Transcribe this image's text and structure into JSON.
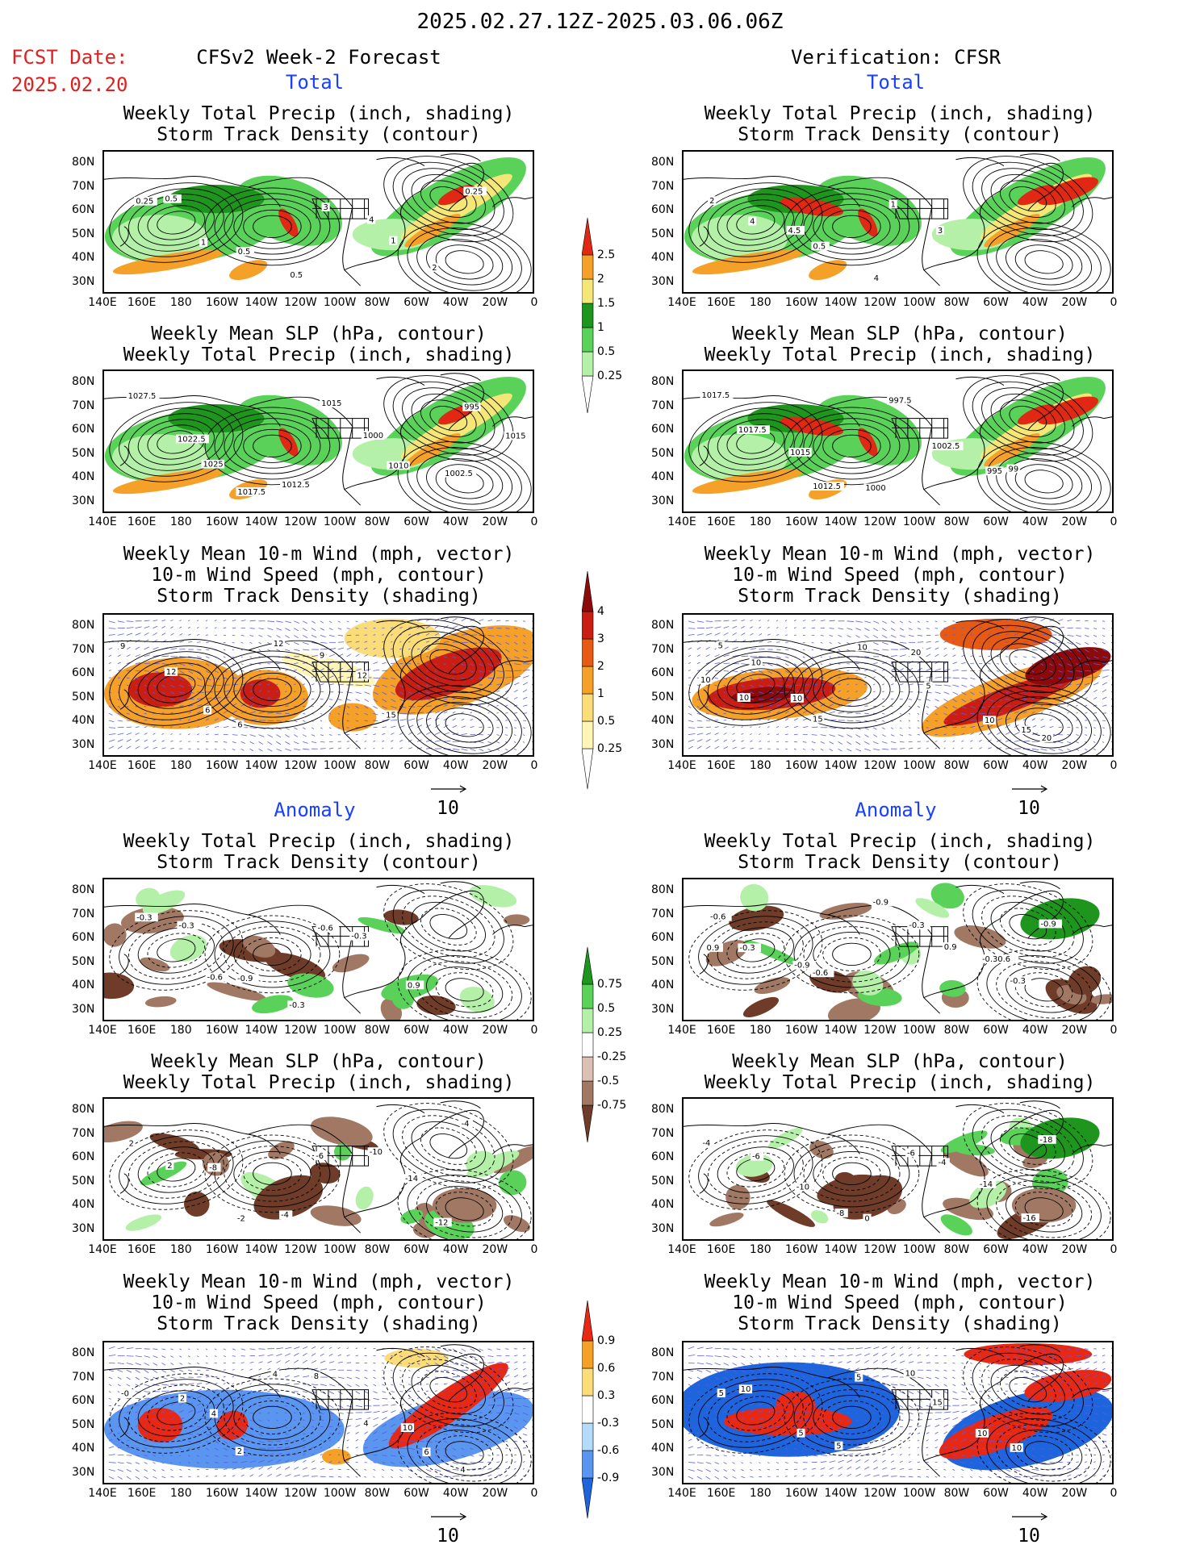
{
  "header": {
    "date_range": "2025.02.27.12Z-2025.03.06.06Z",
    "fcst_label": "FCST Date:",
    "fcst_date": "2025.02.20",
    "left_title": "CFSv2 Week-2 Forecast",
    "right_title": "Verification: CFSR"
  },
  "sections": {
    "total": "Total",
    "anomaly": "Anomaly"
  },
  "panel_titles": {
    "precip_storm": [
      "Weekly Total Precip (inch, shading)",
      "Storm Track Density (contour)"
    ],
    "slp_precip": [
      "Weekly Mean SLP (hPa, contour)",
      "Weekly Total Precip (inch, shading)"
    ],
    "wind_storm": [
      "Weekly Mean 10-m Wind (mph, vector)",
      "10-m Wind Speed (mph, contour)",
      "Storm Track Density (shading)"
    ]
  },
  "axes": {
    "lat_ticks": [
      "80N",
      "70N",
      "60N",
      "50N",
      "40N",
      "30N"
    ],
    "lon_ticks": [
      "140E",
      "160E",
      "180",
      "160W",
      "140W",
      "120W",
      "100W",
      "80W",
      "60W",
      "40W",
      "20W",
      "0"
    ]
  },
  "vector_ref": "10",
  "colorbars": {
    "precip_total": {
      "labels": [
        "2.5",
        "2",
        "1.5",
        "1",
        "0.5",
        "0.25"
      ],
      "colors": [
        "#ffffff",
        "#b4f0a8",
        "#5ad25a",
        "#1e961e",
        "#f5e678",
        "#f5a028",
        "#e02814"
      ]
    },
    "storm_total": {
      "labels": [
        "4",
        "3",
        "2",
        "1",
        "0.5",
        "0.25"
      ],
      "colors": [
        "#ffffff",
        "#fff5b4",
        "#fadc78",
        "#f5a028",
        "#e65a14",
        "#c81e14",
        "#8c0a0a"
      ]
    },
    "precip_anom": {
      "labels": [
        "0.75",
        "0.5",
        "0.25",
        "-0.25",
        "-0.5",
        "-0.75"
      ],
      "colors": [
        "#6e3c28",
        "#a07864",
        "#dcc0b4",
        "#ffffff",
        "#b4f0a8",
        "#5ad25a",
        "#1e961e"
      ]
    },
    "storm_anom": {
      "labels": [
        "0.9",
        "0.6",
        "0.3",
        "-0.3",
        "-0.6",
        "-0.9"
      ],
      "colors": [
        "#1e64dc",
        "#5a96f0",
        "#b4dcfa",
        "#ffffff",
        "#fadc78",
        "#f5a028",
        "#e62814"
      ]
    }
  },
  "contour_labels": {
    "p1L": [
      "0.25",
      "0.5",
      "1",
      "0.5",
      "0.5",
      "3",
      "4",
      "1",
      "2",
      "0.25"
    ],
    "p1R": [
      "2",
      "4",
      "4.5",
      "0.5",
      "4",
      "1",
      "3"
    ],
    "p2L": [
      "1027.5",
      "1022.5",
      "1025",
      "1017.5",
      "1012.5",
      "1015",
      "1000",
      "1010",
      "1002.5",
      "995",
      "1015"
    ],
    "p2R": [
      "1017.5",
      "1017.5",
      "1015",
      "1012.5",
      "1000",
      "997.5",
      "1002.5",
      "995",
      "99"
    ],
    "p3L": [
      "9",
      "12",
      "6",
      "6",
      "12",
      "9",
      "12",
      "15"
    ],
    "p3R": [
      "5",
      "10",
      "10",
      "15",
      "10",
      "20",
      "5",
      "10",
      "15",
      "20",
      "10",
      "10"
    ],
    "p4L": [
      "-0.3",
      "-0.3",
      "-0.6",
      "-0.9",
      "-0.3",
      "-0.6",
      "-0.3",
      "0.9"
    ],
    "p4R": [
      "-0.6",
      "-0.3",
      "-0.9",
      "-0.6",
      "-0.9",
      "-0.3",
      "0.9",
      "-0.30.6",
      "-0.3",
      "-0.9",
      "0.9"
    ],
    "p5L": [
      "2",
      "2",
      "-8",
      "-2",
      "-4",
      "-6",
      "-10",
      "-14",
      "-12",
      "-4"
    ],
    "p5R": [
      "-4",
      "-6",
      "-10",
      "-8",
      "0",
      "-6",
      "-4",
      "-14",
      "-16",
      "-18"
    ],
    "p6L": [
      "-0",
      "2",
      "4",
      "2",
      "4",
      "8",
      "4",
      "10",
      "6",
      "4"
    ],
    "p6R": [
      "5",
      "10",
      "5",
      "5",
      "5",
      "10",
      "15",
      "10",
      "10"
    ]
  }
}
